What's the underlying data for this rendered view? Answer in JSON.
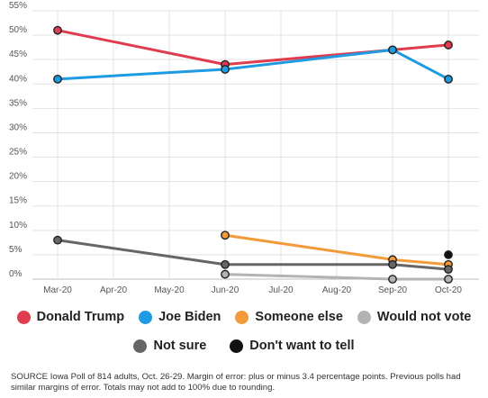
{
  "chart_data": {
    "type": "line",
    "categories": [
      "Mar-20",
      "Apr-20",
      "May-20",
      "Jun-20",
      "Jul-20",
      "Aug-20",
      "Sep-20",
      "Oct-20"
    ],
    "y_ticks": [
      "0%",
      "5%",
      "10%",
      "15%",
      "20%",
      "25%",
      "30%",
      "35%",
      "40%",
      "45%",
      "50%",
      "55%"
    ],
    "ylim": [
      0,
      55
    ],
    "grid": true,
    "legend_position": "bottom",
    "series": [
      {
        "name": "Donald Trump",
        "color": "#e03c4f",
        "points": [
          [
            0,
            51
          ],
          [
            3,
            44
          ],
          [
            6,
            47
          ],
          [
            7,
            48
          ]
        ]
      },
      {
        "name": "Joe Biden",
        "color": "#1e9be2",
        "points": [
          [
            0,
            41
          ],
          [
            3,
            43
          ],
          [
            6,
            47
          ],
          [
            7,
            41
          ]
        ]
      },
      {
        "name": "Someone else",
        "color": "#f39a3b",
        "points": [
          [
            3,
            9
          ],
          [
            6,
            4
          ],
          [
            7,
            3
          ]
        ]
      },
      {
        "name": "Would not vote",
        "color": "#b3b3b3",
        "points": [
          [
            3,
            1
          ],
          [
            6,
            0
          ],
          [
            7,
            0
          ]
        ]
      },
      {
        "name": "Not sure",
        "color": "#666666",
        "points": [
          [
            0,
            8
          ],
          [
            3,
            3
          ],
          [
            6,
            3
          ],
          [
            7,
            2
          ]
        ]
      },
      {
        "name": "Don't want to tell",
        "color": "#111111",
        "points": [
          [
            7,
            5
          ]
        ]
      }
    ]
  },
  "legend": {
    "row1": [
      "Donald Trump",
      "Joe Biden",
      "Someone else",
      "Would not vote"
    ],
    "row2": [
      "Not sure",
      "Don't want to tell"
    ]
  },
  "source_text": "SOURCE Iowa Poll of 814 adults, Oct. 26-29. Margin of error: plus or minus 3.4 percentage points. Previous polls had similar margins of error. Totals may not add to 100% due to rounding."
}
